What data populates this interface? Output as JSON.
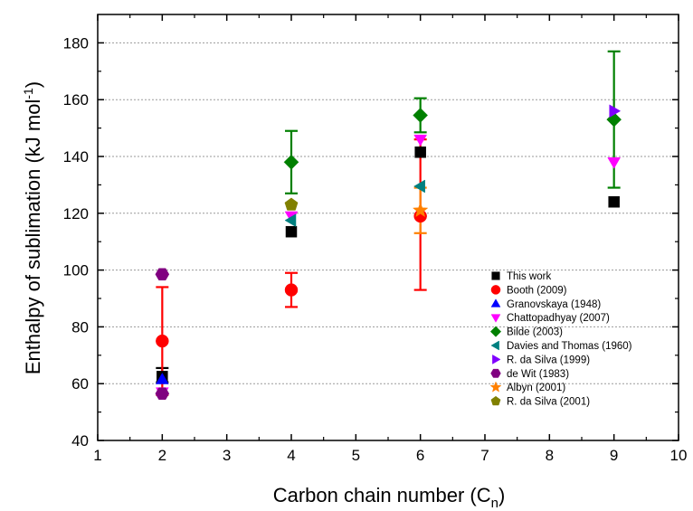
{
  "chart_data": {
    "type": "scatter",
    "title": "",
    "xlabel_main": "Carbon chain number (C",
    "xlabel_sub": "n",
    "xlabel_end": ")",
    "ylabel_main": "Enthalpy of sublimation (kJ mol",
    "ylabel_sup": "-1",
    "ylabel_end": ")",
    "xlim": [
      1,
      10
    ],
    "ylim": [
      40,
      190
    ],
    "xticks": [
      1,
      2,
      3,
      4,
      5,
      6,
      7,
      8,
      9,
      10
    ],
    "xtick_labels": [
      "1",
      "2",
      "3",
      "4",
      "5",
      "6",
      "7",
      "8",
      "9",
      "10"
    ],
    "yticks": [
      40,
      60,
      80,
      100,
      120,
      140,
      160,
      180
    ],
    "ytick_labels": [
      "40",
      "60",
      "80",
      "100",
      "120",
      "140",
      "160",
      "180"
    ],
    "grid": "horizontal dashed",
    "legend_position": "bottom-right",
    "series": [
      {
        "name": "This work",
        "marker": "square",
        "color": "#000000",
        "points": [
          {
            "x": 2,
            "y": 62.5,
            "err": [
              60.5,
              65.5
            ]
          },
          {
            "x": 4,
            "y": 113.5
          },
          {
            "x": 6,
            "y": 141.5
          },
          {
            "x": 9,
            "y": 124
          }
        ]
      },
      {
        "name": "Booth (2009)",
        "marker": "circle",
        "color": "#ff0000",
        "points": [
          {
            "x": 2,
            "y": 75,
            "err": [
              56,
              94
            ]
          },
          {
            "x": 4,
            "y": 93,
            "err": [
              87,
              99
            ]
          },
          {
            "x": 6,
            "y": 119,
            "err": [
              93,
              146
            ]
          }
        ]
      },
      {
        "name": "Granovskaya (1948)",
        "marker": "triangle-up",
        "color": "#0000ff",
        "points": [
          {
            "x": 2,
            "y": 61.5
          }
        ]
      },
      {
        "name": "Chattopadhyay (2007)",
        "marker": "triangle-down",
        "color": "#ff00ff",
        "points": [
          {
            "x": 2,
            "y": 57
          },
          {
            "x": 4,
            "y": 119
          },
          {
            "x": 6,
            "y": 146
          },
          {
            "x": 9,
            "y": 138
          }
        ]
      },
      {
        "name": "Bilde (2003)",
        "marker": "diamond",
        "color": "#008000",
        "points": [
          {
            "x": 4,
            "y": 138,
            "err": [
              127,
              149
            ]
          },
          {
            "x": 6,
            "y": 154.5,
            "err": [
              148.5,
              160.5
            ]
          },
          {
            "x": 9,
            "y": 153,
            "err": [
              129,
              177
            ]
          }
        ]
      },
      {
        "name": "Davies and Thomas (1960)",
        "marker": "triangle-left",
        "color": "#008080",
        "points": [
          {
            "x": 4,
            "y": 117.5
          },
          {
            "x": 6,
            "y": 129.5
          }
        ]
      },
      {
        "name": "R. da Silva (1999)",
        "marker": "triangle-right",
        "color": "#8000ff",
        "points": [
          {
            "x": 9,
            "y": 156
          }
        ]
      },
      {
        "name": "de Wit (1983)",
        "marker": "hexagon",
        "color": "#800080",
        "points": [
          {
            "x": 2,
            "y": 98.5
          },
          {
            "x": 2,
            "y": 56.5
          }
        ]
      },
      {
        "name": "Albyn (2001)",
        "marker": "star",
        "color": "#ff8000",
        "points": [
          {
            "x": 6,
            "y": 121,
            "err": [
              113,
              129
            ]
          }
        ]
      },
      {
        "name": "R. da Silva (2001)",
        "marker": "pentagon",
        "color": "#808000",
        "points": [
          {
            "x": 4,
            "y": 123
          }
        ]
      }
    ]
  }
}
